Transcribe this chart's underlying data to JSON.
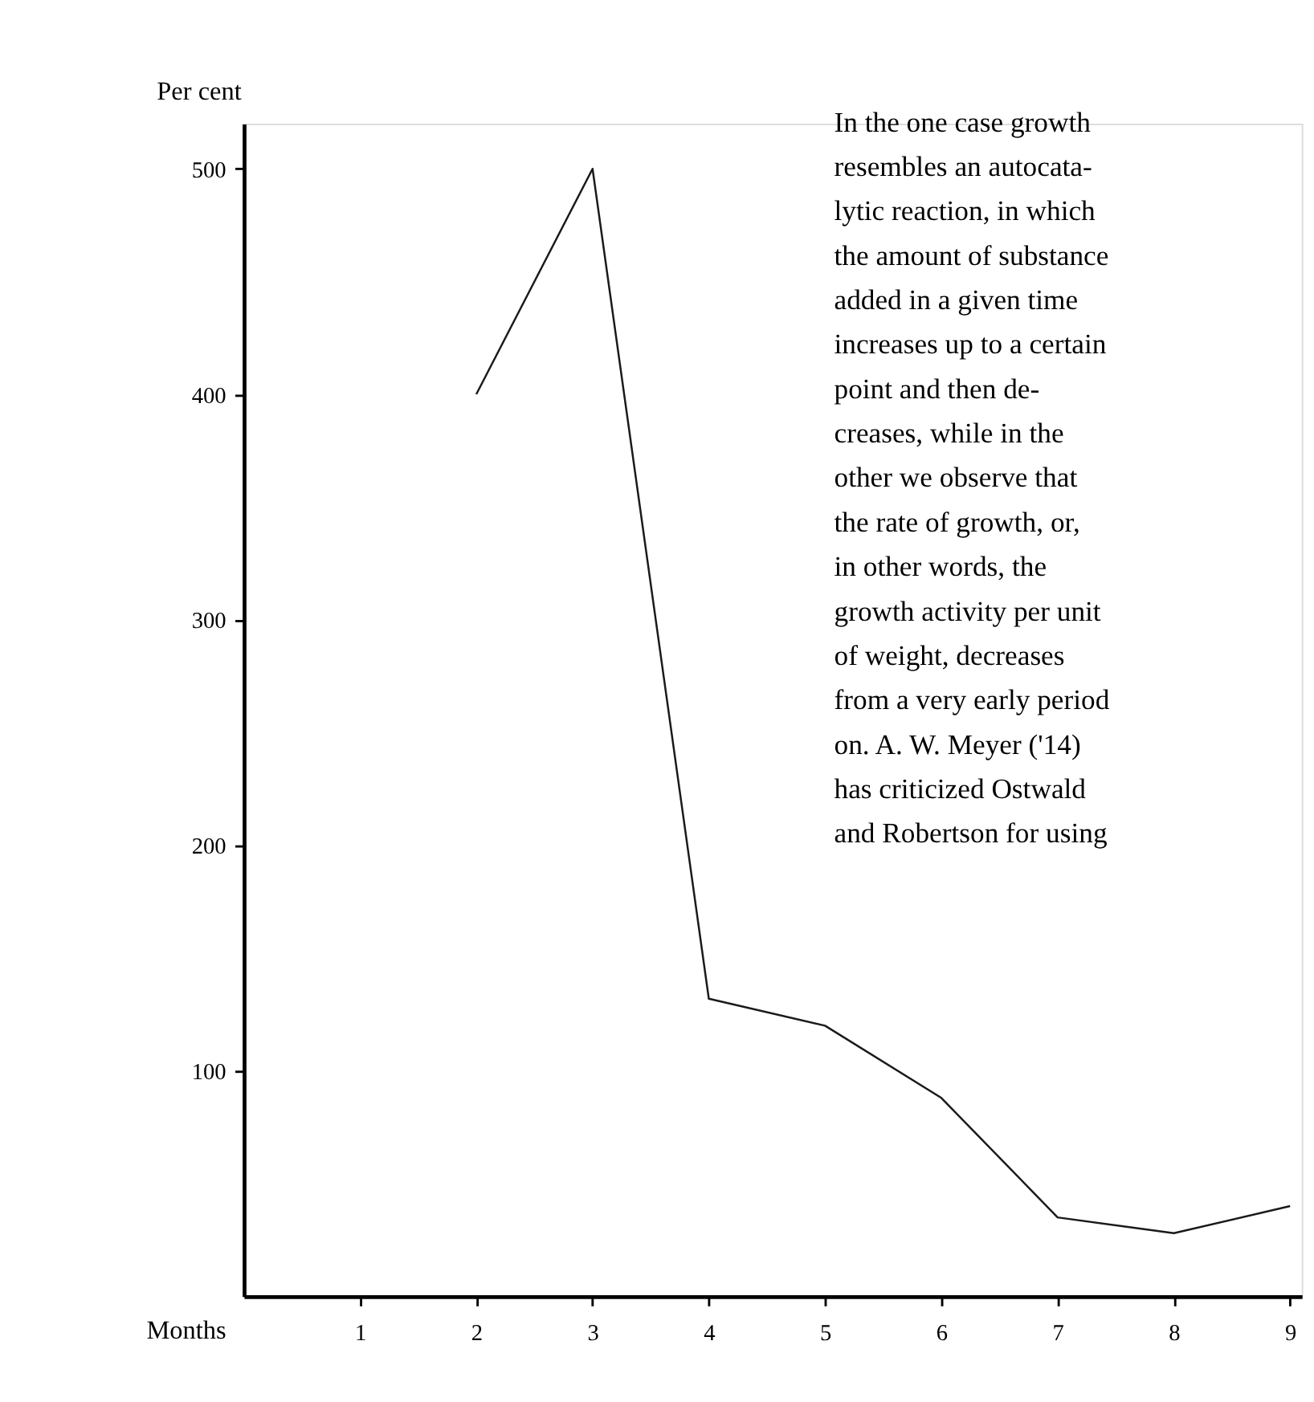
{
  "chart_data": {
    "type": "line",
    "xlabel": "Months",
    "ylabel": "Per cent",
    "x": [
      2,
      3,
      4,
      5,
      6,
      7,
      8,
      9
    ],
    "series": [
      {
        "color": "#1a1a1a",
        "values": [
          400,
          500,
          132,
          120,
          88,
          35,
          28,
          40
        ]
      }
    ],
    "xlim": [
      0,
      9.1
    ],
    "ylim": [
      0,
      520
    ],
    "xticks": [
      1,
      2,
      3,
      4,
      5,
      6,
      7,
      8,
      9
    ],
    "yticks": [
      100,
      200,
      300,
      400,
      500
    ],
    "annotations": [
      "In the one case growth\nresembles an autocata-\nlytic reaction, in which\nthe amount of substance\nadded in a given time\nincreases up to a certain\npoint and then de-\ncreases, while in the\nother we observe that\nthe rate of growth, or,\nin other words, the\ngrowth activity per unit\nof weight, decreases\nfrom a very early period\non.  A. W. Meyer ('14)\nhas criticized Ostwald\nand Robertson for using"
    ]
  }
}
